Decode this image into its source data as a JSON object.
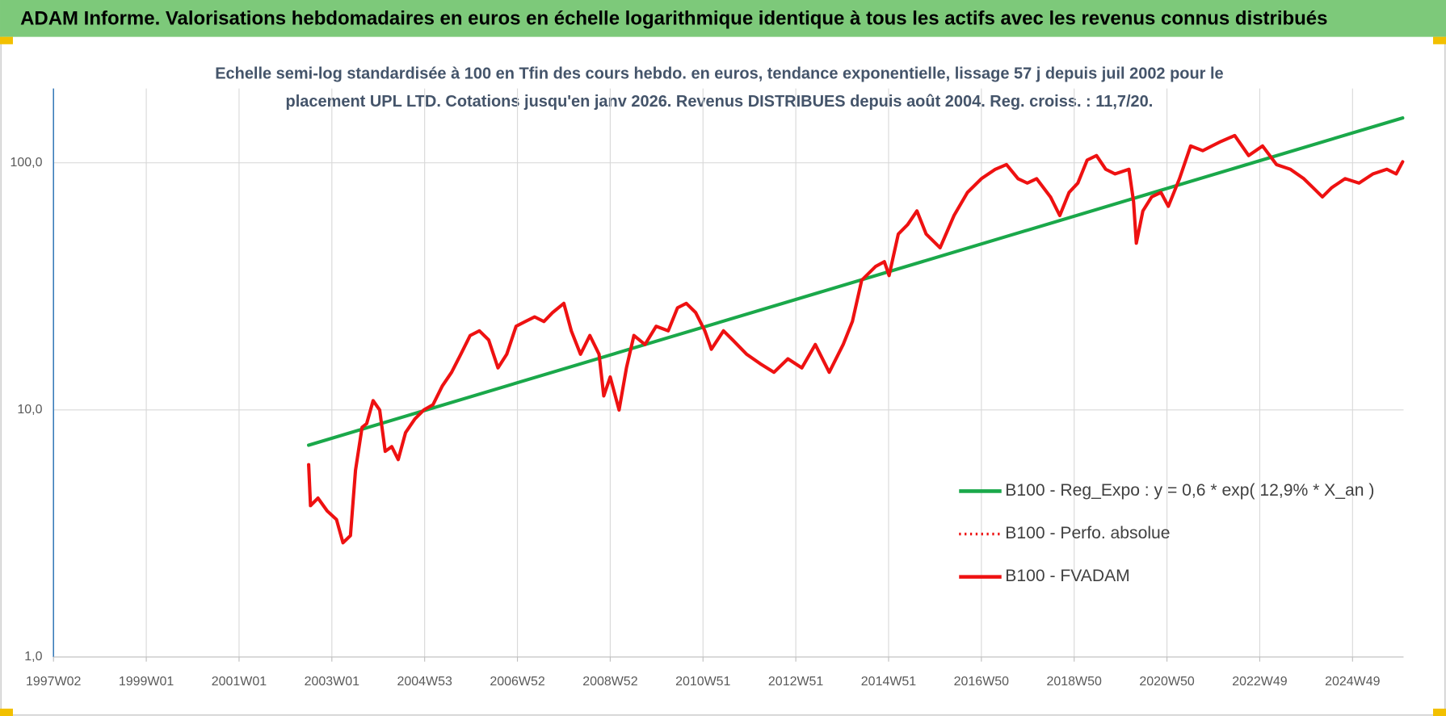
{
  "chart_data": {
    "type": "line",
    "title": "ADAM Informe. Valorisations hebdomadaires en euros en échelle logarithmique identique à tous les actifs avec les revenus connus distribués",
    "subtitle": [
      "Echelle semi-log standardisée à 100 en Tfin des cours hebdo. en euros, tendance exponentielle, lissage 57 j depuis juil 2002 pour le",
      "placement UPL LTD. Cotations jusqu'en janv 2026. Revenus DISTRIBUES depuis août 2004. Reg. croiss. : 11,7/20."
    ],
    "log_y": true,
    "grid": true,
    "legend_position": "right",
    "xlim": [
      1997.0,
      2026.1
    ],
    "xticks": [
      {
        "value": 1997.0,
        "label": "1997W02"
      },
      {
        "value": 1999.0,
        "label": "1999W01"
      },
      {
        "value": 2001.0,
        "label": "2001W01"
      },
      {
        "value": 2003.0,
        "label": "2003W01"
      },
      {
        "value": 2005.0,
        "label": "2004W53"
      },
      {
        "value": 2007.0,
        "label": "2006W52"
      },
      {
        "value": 2009.0,
        "label": "2008W52"
      },
      {
        "value": 2011.0,
        "label": "2010W51"
      },
      {
        "value": 2013.0,
        "label": "2012W51"
      },
      {
        "value": 2015.0,
        "label": "2014W51"
      },
      {
        "value": 2017.0,
        "label": "2016W50"
      },
      {
        "value": 2019.0,
        "label": "2018W50"
      },
      {
        "value": 2021.0,
        "label": "2020W50"
      },
      {
        "value": 2023.0,
        "label": "2022W49"
      },
      {
        "value": 2025.0,
        "label": "2024W49"
      }
    ],
    "ylim": [
      1,
      200
    ],
    "yticks": [
      {
        "value": 1,
        "label": "1,0"
      },
      {
        "value": 10,
        "label": "10,0"
      },
      {
        "value": 100,
        "label": "100,0"
      }
    ],
    "series": [
      {
        "name": "B100 - Reg_Expo : y = 0,6 * exp( 12,9% *  X_an )",
        "color": "#1aa84a",
        "dash": false,
        "x": [
          2002.5,
          2026.08
        ],
        "values": [
          7.2,
          152
        ]
      },
      {
        "name": "B100 - Perfo. absolue",
        "color": "#ee1111",
        "dash": true,
        "x": [
          2002.5,
          2002.54,
          2002.7,
          2002.9,
          2003.1,
          2003.24,
          2003.4,
          2003.51,
          2003.65,
          2003.75,
          2003.89,
          2004.03,
          2004.15,
          2004.29,
          2004.43,
          2004.59,
          2004.79,
          2004.98,
          2005.18,
          2005.38,
          2005.58,
          2005.78,
          2005.98,
          2006.18,
          2006.38,
          2006.58,
          2006.77,
          2006.97,
          2007.17,
          2007.37,
          2007.57,
          2007.76,
          2008.0,
          2008.16,
          2008.36,
          2008.56,
          2008.76,
          2008.86,
          2009.0,
          2009.19,
          2009.35,
          2009.51,
          2009.75,
          2009.99,
          2010.25,
          2010.45,
          2010.64,
          2010.84,
          2011.04,
          2011.18,
          2011.44,
          2011.64,
          2011.94,
          2012.23,
          2012.53,
          2012.83,
          2013.13,
          2013.42,
          2013.72,
          2014.02,
          2014.22,
          2014.42,
          2014.72,
          2014.91,
          2015.01,
          2015.21,
          2015.41,
          2015.61,
          2015.81,
          2016.11,
          2016.41,
          2016.7,
          2017.0,
          2017.3,
          2017.54,
          2017.79,
          2017.99,
          2018.19,
          2018.49,
          2018.69,
          2018.89,
          2019.08,
          2019.28,
          2019.48,
          2019.68,
          2019.88,
          2020.18,
          2020.28,
          2020.34,
          2020.48,
          2020.67,
          2020.87,
          2021.03,
          2021.27,
          2021.51,
          2021.77,
          2021.97,
          2022.16,
          2022.46,
          2022.76,
          2023.06,
          2023.36,
          2023.66,
          2023.95,
          2024.15,
          2024.35,
          2024.55,
          2024.84,
          2025.14,
          2025.44,
          2025.74,
          2025.94,
          2026.08
        ],
        "values": [
          6.0,
          4.1,
          4.4,
          3.9,
          3.6,
          2.9,
          3.1,
          5.7,
          8.5,
          8.8,
          10.9,
          10.0,
          6.8,
          7.1,
          6.3,
          8.1,
          9.2,
          10.0,
          10.5,
          12.5,
          14.2,
          16.8,
          20.0,
          20.9,
          19.2,
          14.8,
          16.8,
          21.8,
          22.8,
          23.8,
          22.8,
          24.8,
          27.0,
          20.9,
          16.8,
          20.0,
          16.8,
          11.4,
          13.6,
          10.0,
          14.8,
          20.0,
          18.4,
          21.8,
          20.9,
          25.9,
          27.0,
          24.8,
          20.9,
          17.6,
          20.9,
          19.2,
          16.8,
          15.4,
          14.2,
          16.1,
          14.8,
          18.4,
          14.2,
          18.4,
          22.8,
          33.5,
          38.1,
          39.8,
          35.0,
          51.5,
          56.2,
          63.9,
          51.5,
          45.3,
          61.2,
          75.9,
          86.3,
          94.2,
          98.4,
          86.3,
          82.8,
          86.3,
          72.8,
          61.2,
          75.9,
          82.8,
          102.6,
          107,
          94.2,
          90.2,
          94.2,
          69.7,
          47.3,
          63.9,
          72.8,
          75.9,
          66.7,
          86.3,
          117,
          112,
          117,
          122,
          129,
          107,
          117,
          98.4,
          94.2,
          86.3,
          79.3,
          72.8,
          79.3,
          86.3,
          82.8,
          90.2,
          94.2,
          90.2,
          101
        ]
      },
      {
        "name": "B100 - FVADAM",
        "color": "#ee1111",
        "dash": false,
        "x": [
          2002.5,
          2002.54,
          2002.7,
          2002.9,
          2003.1,
          2003.24,
          2003.4,
          2003.51,
          2003.65,
          2003.75,
          2003.89,
          2004.03,
          2004.15,
          2004.29,
          2004.43,
          2004.59,
          2004.79,
          2004.98,
          2005.18,
          2005.38,
          2005.58,
          2005.78,
          2005.98,
          2006.18,
          2006.38,
          2006.58,
          2006.77,
          2006.97,
          2007.17,
          2007.37,
          2007.57,
          2007.76,
          2008.0,
          2008.16,
          2008.36,
          2008.56,
          2008.76,
          2008.86,
          2009.0,
          2009.19,
          2009.35,
          2009.51,
          2009.75,
          2009.99,
          2010.25,
          2010.45,
          2010.64,
          2010.84,
          2011.04,
          2011.18,
          2011.44,
          2011.64,
          2011.94,
          2012.23,
          2012.53,
          2012.83,
          2013.13,
          2013.42,
          2013.72,
          2014.02,
          2014.22,
          2014.42,
          2014.72,
          2014.91,
          2015.01,
          2015.21,
          2015.41,
          2015.61,
          2015.81,
          2016.11,
          2016.41,
          2016.7,
          2017.0,
          2017.3,
          2017.54,
          2017.79,
          2017.99,
          2018.19,
          2018.49,
          2018.69,
          2018.89,
          2019.08,
          2019.28,
          2019.48,
          2019.68,
          2019.88,
          2020.18,
          2020.28,
          2020.34,
          2020.48,
          2020.67,
          2020.87,
          2021.03,
          2021.27,
          2021.51,
          2021.77,
          2021.97,
          2022.16,
          2022.46,
          2022.76,
          2023.06,
          2023.36,
          2023.66,
          2023.95,
          2024.15,
          2024.35,
          2024.55,
          2024.84,
          2025.14,
          2025.44,
          2025.74,
          2025.94,
          2026.08
        ],
        "values": [
          6.0,
          4.1,
          4.4,
          3.9,
          3.6,
          2.9,
          3.1,
          5.7,
          8.5,
          8.8,
          10.9,
          10.0,
          6.8,
          7.1,
          6.3,
          8.1,
          9.2,
          10.0,
          10.5,
          12.5,
          14.2,
          16.8,
          20.0,
          20.9,
          19.2,
          14.8,
          16.8,
          21.8,
          22.8,
          23.8,
          22.8,
          24.8,
          27.0,
          20.9,
          16.8,
          20.0,
          16.8,
          11.4,
          13.6,
          10.0,
          14.8,
          20.0,
          18.4,
          21.8,
          20.9,
          25.9,
          27.0,
          24.8,
          20.9,
          17.6,
          20.9,
          19.2,
          16.8,
          15.4,
          14.2,
          16.1,
          14.8,
          18.4,
          14.2,
          18.4,
          22.8,
          33.5,
          38.1,
          39.8,
          35.0,
          51.5,
          56.2,
          63.9,
          51.5,
          45.3,
          61.2,
          75.9,
          86.3,
          94.2,
          98.4,
          86.3,
          82.8,
          86.3,
          72.8,
          61.2,
          75.9,
          82.8,
          102.6,
          107,
          94.2,
          90.2,
          94.2,
          69.7,
          47.3,
          63.9,
          72.8,
          75.9,
          66.7,
          86.3,
          117,
          112,
          117,
          122,
          129,
          107,
          117,
          98.4,
          94.2,
          86.3,
          79.3,
          72.8,
          79.3,
          86.3,
          82.8,
          90.2,
          94.2,
          90.2,
          101
        ]
      }
    ]
  }
}
